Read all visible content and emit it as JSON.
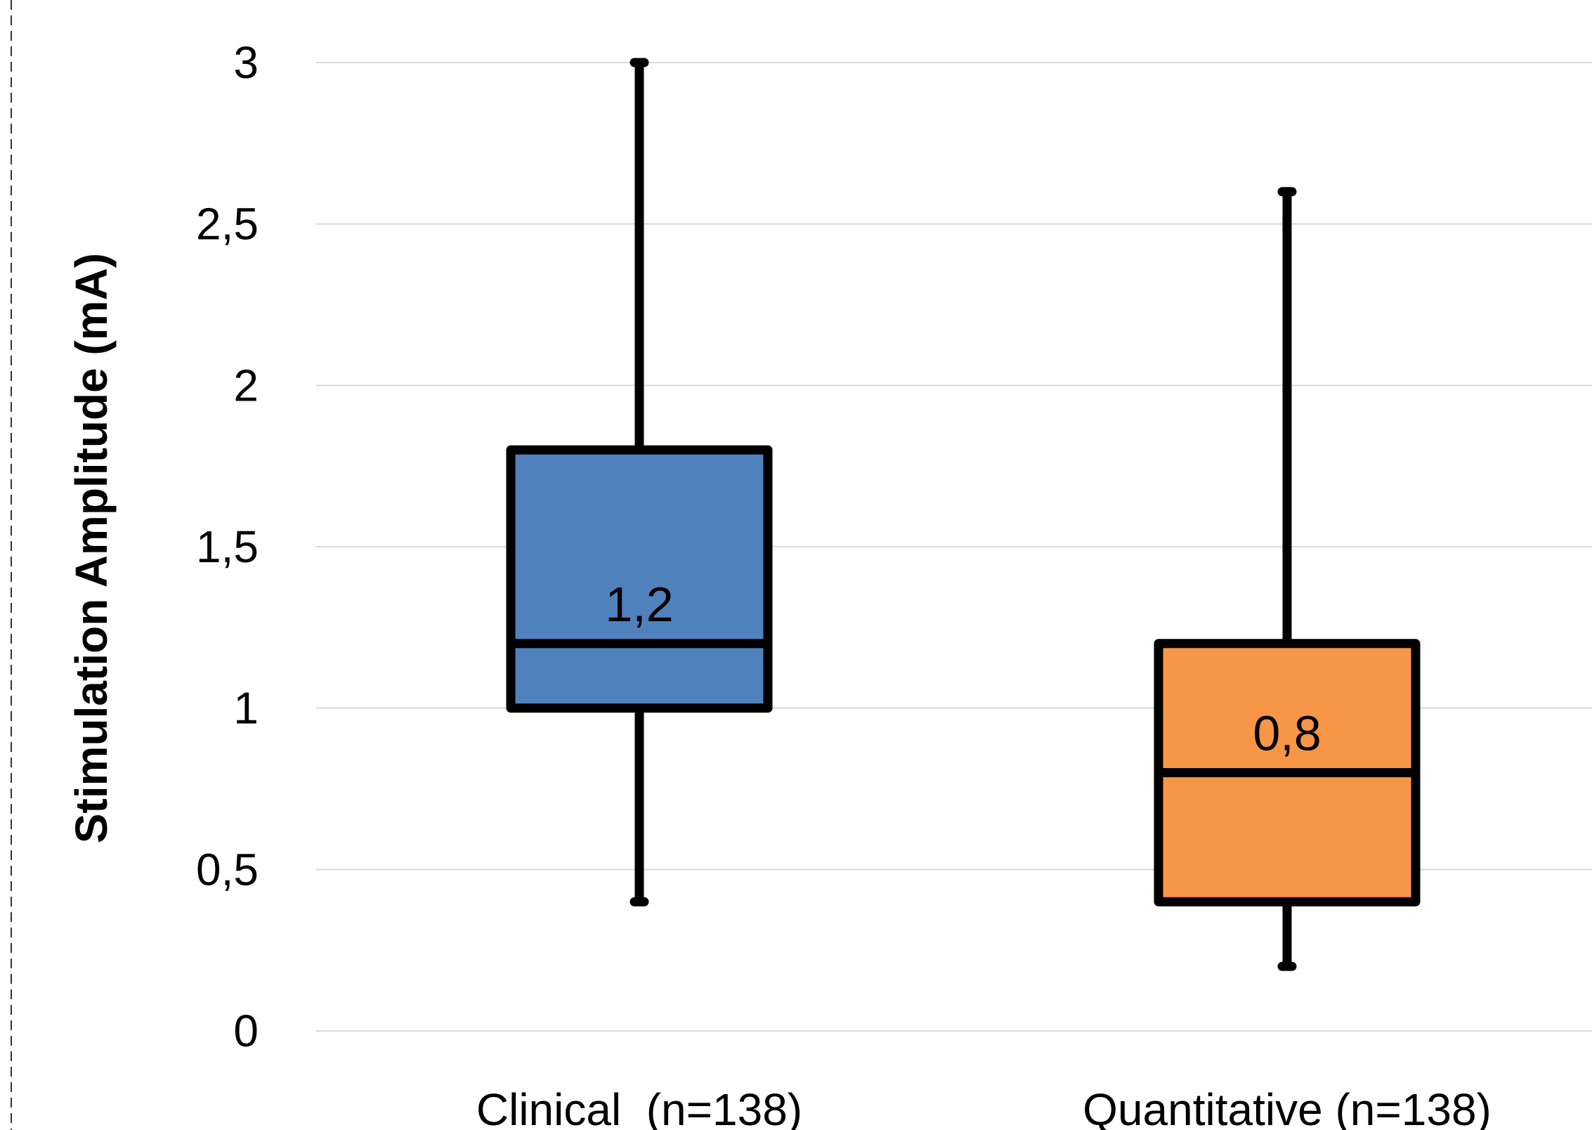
{
  "chart_data": {
    "type": "box",
    "ylabel": "Stimulation Amplitude (mA)",
    "ylim": [
      0,
      3
    ],
    "y_ticks": [
      "0",
      "0,5",
      "1",
      "1,5",
      "2",
      "2,5",
      "3"
    ],
    "y_tick_values": [
      0,
      0.5,
      1,
      1.5,
      2,
      2.5,
      3
    ],
    "grid": true,
    "categories": [
      "Clinical  (n=138)",
      "Quantitative (n=138)"
    ],
    "boxes": [
      {
        "category": "Clinical  (n=138)",
        "min": 0.4,
        "q1": 1.0,
        "median": 1.2,
        "q3": 1.8,
        "max": 3.0,
        "median_label": "1,2",
        "color": "#4f81bd"
      },
      {
        "category": "Quantitative (n=138)",
        "min": 0.2,
        "q1": 0.4,
        "median": 0.8,
        "q3": 1.2,
        "max": 2.6,
        "median_label": "0,8",
        "color": "#f79646"
      }
    ]
  }
}
